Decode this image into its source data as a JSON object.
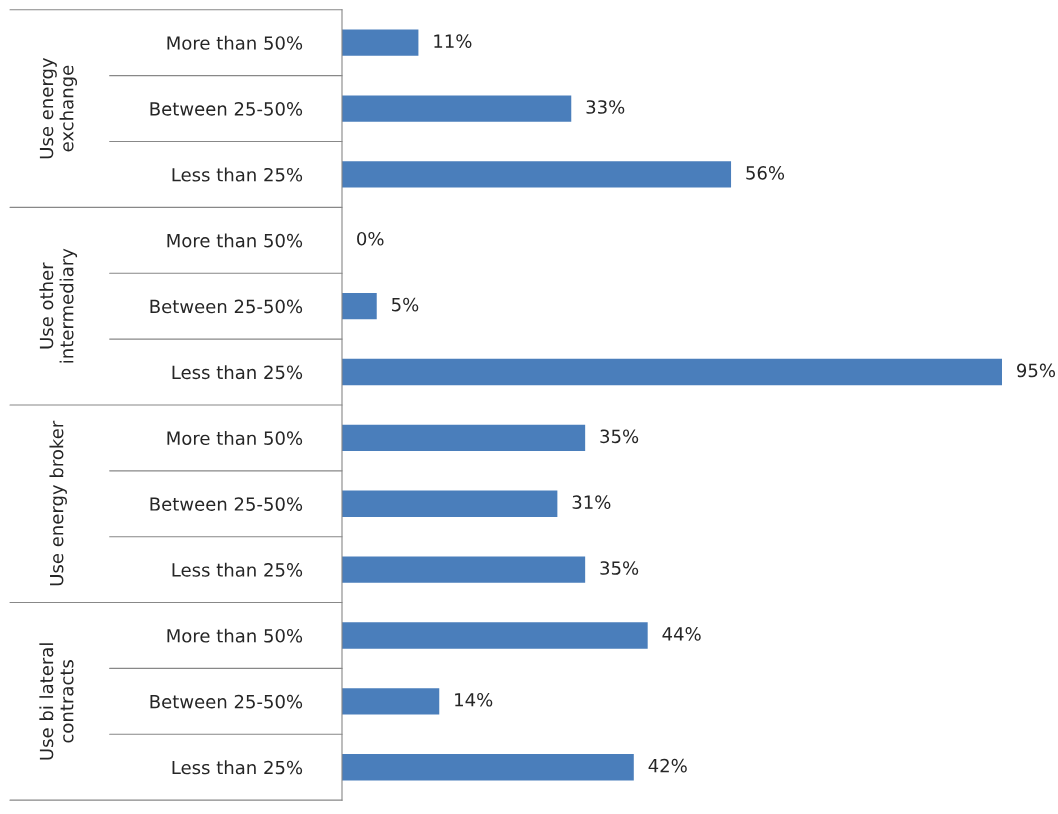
{
  "chart_data": {
    "type": "bar",
    "orientation": "horizontal",
    "categories": [
      "More than 50%",
      "Between 25-50%",
      "Less than 25%",
      "More than 50%",
      "Between 25-50%",
      "Less than 25%",
      "More than 50%",
      "Between 25-50%",
      "Less than 25%",
      "More than 50%",
      "Between 25-50%",
      "Less than 25%"
    ],
    "values": [
      11,
      33,
      56,
      0,
      5,
      95,
      35,
      31,
      35,
      44,
      14,
      42
    ],
    "value_labels": [
      "11%",
      "33%",
      "56%",
      "0%",
      "5%",
      "95%",
      "35%",
      "31%",
      "35%",
      "44%",
      "14%",
      "42%"
    ],
    "color": "#4a7ebb",
    "tick_labels": "y",
    "grid": false,
    "legend": false,
    "annotations": [
      "Use energy\nexchange",
      "Use other\nintermediary",
      "Use energy broker",
      "Use bi lateral\ncontracts"
    ]
  }
}
